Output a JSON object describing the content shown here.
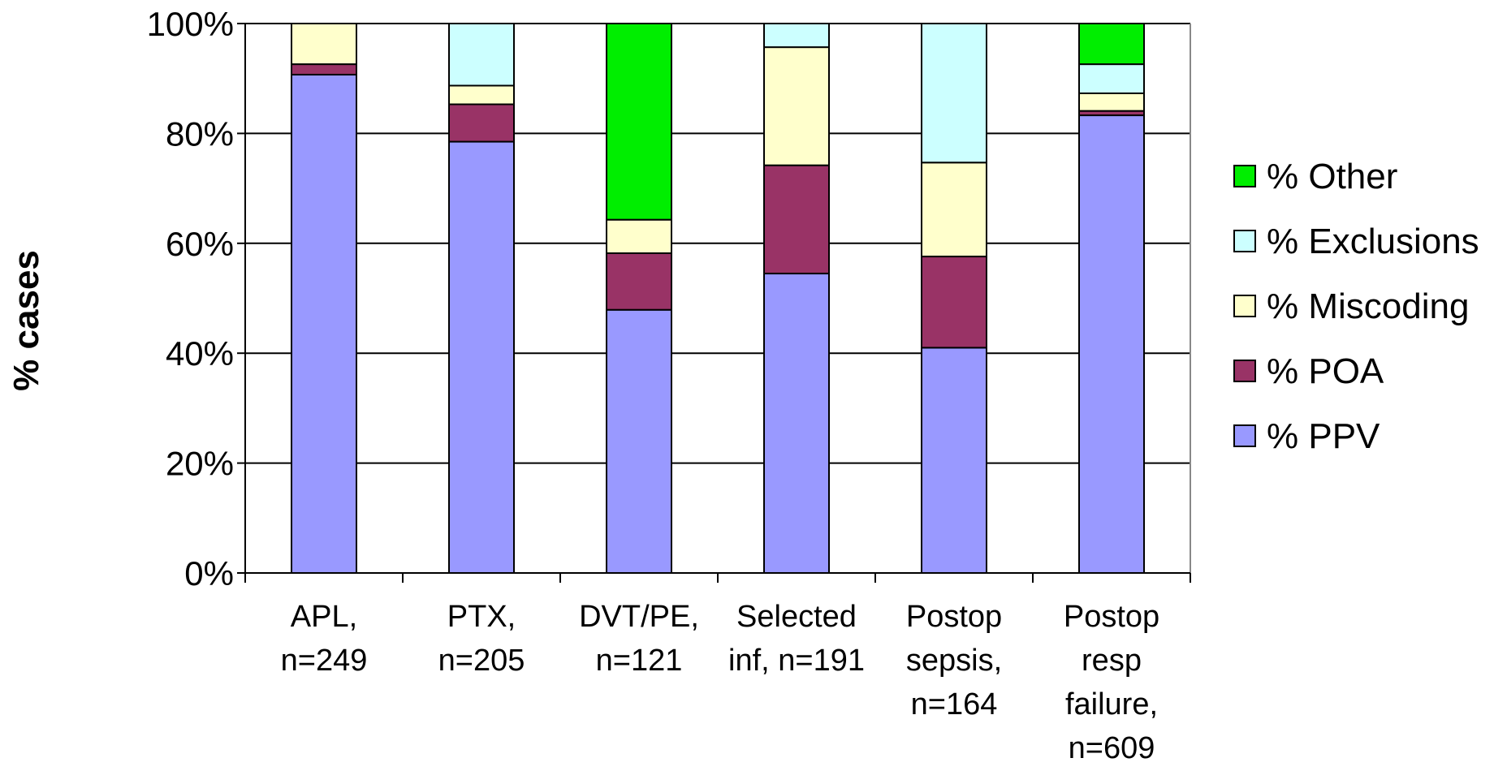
{
  "chart_data": {
    "type": "bar",
    "stacked": true,
    "title": "",
    "xlabel": "",
    "ylabel": "% cases",
    "ylim": [
      0,
      100
    ],
    "ytick_labels": [
      "0%",
      "20%",
      "40%",
      "60%",
      "80%",
      "100%"
    ],
    "grid": true,
    "legend_position": "right",
    "categories": [
      [
        "APL,",
        "n=249"
      ],
      [
        "PTX,",
        "n=205"
      ],
      [
        "DVT/PE,",
        "n=121"
      ],
      [
        "Selected",
        "inf, n=191"
      ],
      [
        "Postop",
        "sepsis,",
        "n=164"
      ],
      [
        "Postop",
        "resp",
        "failure,",
        "n=609"
      ]
    ],
    "series": [
      {
        "name": "% PPV",
        "color": "#9999ff",
        "values": [
          90.7,
          78.5,
          47.9,
          54.5,
          41.0,
          83.3
        ]
      },
      {
        "name": "% POA",
        "color": "#993366",
        "values": [
          1.9,
          6.8,
          10.3,
          19.7,
          16.6,
          0.8
        ]
      },
      {
        "name": "% Miscoding",
        "color": "#ffffcc",
        "values": [
          7.4,
          3.4,
          6.1,
          21.5,
          17.1,
          3.2
        ]
      },
      {
        "name": "% Exclusions",
        "color": "#ccffff",
        "values": [
          0.0,
          11.3,
          0.0,
          4.3,
          25.3,
          5.3
        ]
      },
      {
        "name": "% Other",
        "color": "#00ee00",
        "values": [
          0.0,
          0.0,
          35.7,
          0.0,
          0.0,
          7.4
        ]
      }
    ],
    "legend_order": [
      "% Other",
      "% Exclusions",
      "% Miscoding",
      "% POA",
      "% PPV"
    ]
  }
}
